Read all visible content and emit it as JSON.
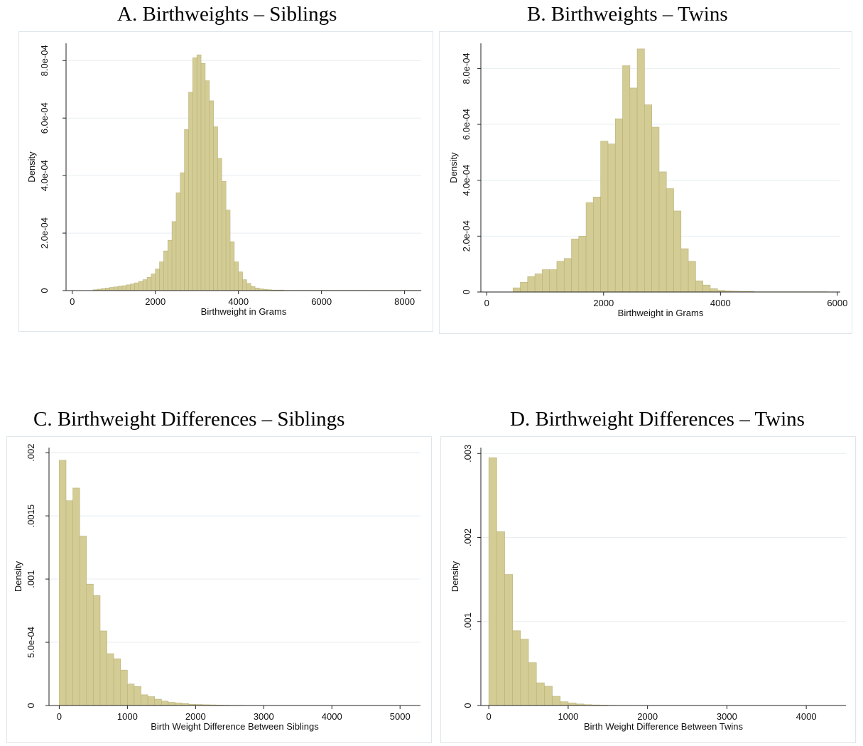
{
  "chart_data": [
    {
      "id": "A",
      "type": "bar",
      "title": "A. Birthweights – Siblings",
      "xlabel": "Birthweight in Grams",
      "ylabel": "Density",
      "xlim": [
        -150,
        8400
      ],
      "ylim": [
        0,
        0.00086
      ],
      "xticks": [
        {
          "v": 0,
          "label": "0"
        },
        {
          "v": 2000,
          "label": "2000"
        },
        {
          "v": 4000,
          "label": "4000"
        },
        {
          "v": 6000,
          "label": "6000"
        },
        {
          "v": 8000,
          "label": "8000"
        }
      ],
      "yticks": [
        {
          "v": 0,
          "label": "0"
        },
        {
          "v": 0.0002,
          "label": "2.0e-04"
        },
        {
          "v": 0.0004,
          "label": "4.0e-04"
        },
        {
          "v": 0.0006,
          "label": "6.0e-04"
        },
        {
          "v": 0.0008,
          "label": "8.0e-04"
        }
      ],
      "grid": true,
      "bin_start": 500,
      "bin_width": 100,
      "values": [
        3e-06,
        5e-06,
        7e-06,
        9e-06,
        1.1e-05,
        1.3e-05,
        1.5e-05,
        1.7e-05,
        2e-05,
        2.3e-05,
        2.7e-05,
        3.2e-05,
        3.8e-05,
        4.6e-05,
        5.8e-05,
        7.5e-05,
        0.0001,
        0.000138,
        0.000175,
        0.00024,
        0.00034,
        0.00041,
        0.00056,
        0.00069,
        0.00081,
        0.00082,
        0.00079,
        0.00073,
        0.00066,
        0.00057,
        0.00046,
        0.00038,
        0.00028,
        0.00017,
        0.0001,
        6.5e-05,
        3.8e-05,
        2.5e-05,
        1.4e-05,
        9e-06,
        6e-06,
        4e-06,
        3e-06,
        2e-06,
        2e-06,
        2e-06,
        1e-06,
        1e-06,
        1e-06,
        1e-06,
        1e-06,
        1e-06,
        1e-06,
        1e-06,
        1e-06,
        1e-06,
        1e-06,
        1e-06,
        1e-06,
        1e-06,
        1e-06,
        1e-06,
        1e-06,
        1e-06,
        1e-06,
        1e-06,
        1e-06,
        1e-06,
        1e-06,
        1e-06,
        1e-06,
        1e-06,
        1e-06,
        1e-06,
        1e-06,
        1e-06,
        1e-06,
        1e-06,
        1e-06
      ]
    },
    {
      "id": "B",
      "type": "bar",
      "title": "B. Birthweights – Twins",
      "xlabel": "Birthweight in Grams",
      "ylabel": "Density",
      "xlim": [
        -100,
        6050
      ],
      "ylim": [
        0,
        0.00089
      ],
      "xticks": [
        {
          "v": 0,
          "label": "0"
        },
        {
          "v": 2000,
          "label": "2000"
        },
        {
          "v": 4000,
          "label": "4000"
        },
        {
          "v": 6000,
          "label": "6000"
        }
      ],
      "yticks": [
        {
          "v": 0,
          "label": "0"
        },
        {
          "v": 0.0002,
          "label": "2.0e-04"
        },
        {
          "v": 0.0004,
          "label": "4.0e-04"
        },
        {
          "v": 0.0006,
          "label": "6.0e-04"
        },
        {
          "v": 0.0008,
          "label": "8.0e-04"
        }
      ],
      "grid": true,
      "bin_start": 450,
      "bin_width": 125,
      "values": [
        1.5e-05,
        3.5e-05,
        5.5e-05,
        6.5e-05,
        8e-05,
        8e-05,
        0.00011,
        0.00012,
        0.00019,
        0.0002,
        0.00032,
        0.00034,
        0.00054,
        0.00053,
        0.00062,
        0.00081,
        0.00073,
        0.00087,
        0.00067,
        0.00059,
        0.00043,
        0.00037,
        0.00029,
        0.000155,
        0.00011,
        4e-05,
        2.5e-05,
        1.2e-05,
        6e-06,
        4e-06,
        3e-06,
        2e-06,
        2e-06,
        1e-06,
        1e-06,
        1e-06,
        1e-06,
        1e-06,
        1e-06,
        1e-06,
        1e-06,
        1e-06,
        1e-06
      ]
    },
    {
      "id": "C",
      "type": "bar",
      "title": "C. Birthweight Differences – Siblings",
      "xlabel": "Birth Weight Difference Between Siblings",
      "ylabel": "Density",
      "xlim": [
        -150,
        5300
      ],
      "ylim": [
        0,
        0.00204
      ],
      "xticks": [
        {
          "v": 0,
          "label": "0"
        },
        {
          "v": 1000,
          "label": "1000"
        },
        {
          "v": 2000,
          "label": "2000"
        },
        {
          "v": 3000,
          "label": "3000"
        },
        {
          "v": 4000,
          "label": "4000"
        },
        {
          "v": 5000,
          "label": "5000"
        }
      ],
      "yticks": [
        {
          "v": 0,
          "label": "0"
        },
        {
          "v": 0.0005,
          "label": "5.0e-04"
        },
        {
          "v": 0.001,
          "label": ".001"
        },
        {
          "v": 0.0015,
          "label": ".0015"
        },
        {
          "v": 0.002,
          "label": ".002"
        }
      ],
      "grid": true,
      "bin_start": 0,
      "bin_width": 100,
      "values": [
        0.00194,
        0.00162,
        0.00172,
        0.00134,
        0.00096,
        0.00087,
        0.00059,
        0.00041,
        0.00037,
        0.00028,
        0.00017,
        0.00015,
        8.5e-05,
        7e-05,
        5e-05,
        3.5e-05,
        2.5e-05,
        2e-05,
        1.5e-05,
        1e-05,
        8e-06,
        6e-06,
        5e-06,
        4e-06,
        3e-06,
        2e-06,
        2e-06,
        1e-06,
        1e-06,
        1e-06,
        1e-06,
        1e-06,
        1e-06,
        1e-06,
        1e-06,
        1e-06,
        1e-06,
        1e-06,
        1e-06,
        1e-06,
        1e-06,
        1e-06,
        1e-06,
        1e-06,
        1e-06,
        1e-06,
        1e-06,
        1e-06,
        1e-06,
        1e-06,
        1e-06
      ]
    },
    {
      "id": "D",
      "type": "bar",
      "title": "D. Birthweight Differences – Twins",
      "xlabel": "Birth Weight Difference Between Twins",
      "ylabel": "Density",
      "xlim": [
        -100,
        4500
      ],
      "ylim": [
        0,
        0.00307
      ],
      "xticks": [
        {
          "v": 0,
          "label": "0"
        },
        {
          "v": 1000,
          "label": "1000"
        },
        {
          "v": 2000,
          "label": "2000"
        },
        {
          "v": 3000,
          "label": "3000"
        },
        {
          "v": 4000,
          "label": "4000"
        }
      ],
      "yticks": [
        {
          "v": 0,
          "label": "0"
        },
        {
          "v": 0.001,
          "label": ".001"
        },
        {
          "v": 0.002,
          "label": ".002"
        },
        {
          "v": 0.003,
          "label": ".003"
        }
      ],
      "grid": true,
      "bin_start": 0,
      "bin_width": 100,
      "values": [
        0.00295,
        0.00207,
        0.00156,
        0.00089,
        0.00079,
        0.00051,
        0.00027,
        0.00023,
        0.00011,
        4.5e-05,
        3e-05,
        1.8e-05,
        1e-05,
        7e-06,
        5e-06,
        3e-06,
        2e-06,
        2e-06,
        1e-06,
        1e-06,
        1e-06,
        1e-06,
        1e-06,
        1e-06,
        1e-06,
        1e-06,
        1e-06,
        1e-06,
        1e-06,
        1e-06,
        1e-06,
        1e-06,
        1e-06,
        1e-06,
        1e-06,
        1e-06,
        1e-06,
        1e-06,
        1e-06,
        1e-06,
        1e-06,
        1e-06,
        1e-06,
        1e-06
      ]
    }
  ]
}
